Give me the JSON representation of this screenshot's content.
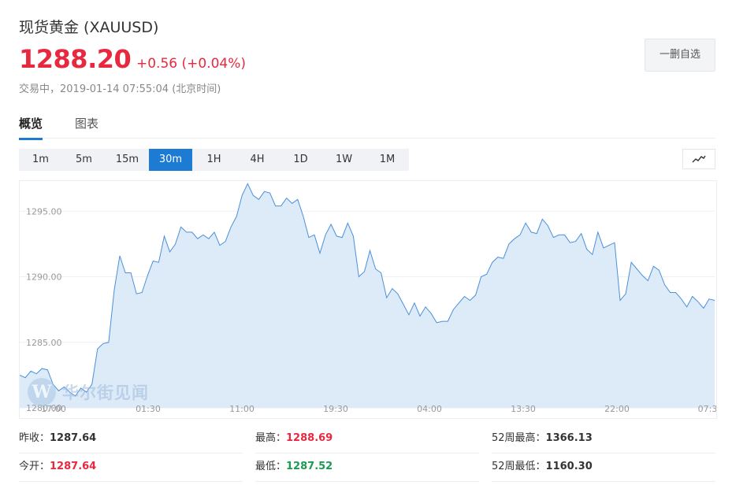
{
  "header": {
    "title": "现货黄金  (XAUUSD)",
    "price": "1288.20",
    "change": "+0.56 (+0.04%)",
    "status": "交易中，2019-01-14 07:55:04 (北京时间)",
    "watch_button": "一删自选"
  },
  "tabs": [
    {
      "label": "概览",
      "active": true
    },
    {
      "label": "图表",
      "active": false
    }
  ],
  "periods": [
    "1m",
    "5m",
    "15m",
    "30m",
    "1H",
    "4H",
    "1D",
    "1W",
    "1M"
  ],
  "active_period": "30m",
  "chart_type_icon": "line-chart-icon",
  "watermark": {
    "logo_letter": "W",
    "text": "华尔街见闻"
  },
  "chart_data": {
    "type": "area",
    "x_ticks": [
      "17:00",
      "01:30",
      "11:00",
      "19:30",
      "04:00",
      "13:30",
      "22:00",
      "07:3"
    ],
    "y_ticks": [
      "1280.00",
      "1285.00",
      "1290.00",
      "1295.00"
    ],
    "ylim": [
      1280,
      1297.3
    ],
    "grid": true,
    "line_color": "#4a90d9",
    "fill_color": "#ddebf9",
    "values": [
      1282.5,
      1282.3,
      1282.8,
      1282.6,
      1283.0,
      1282.9,
      1281.8,
      1281.3,
      1281.6,
      1281.2,
      1280.9,
      1281.5,
      1281.2,
      1281.8,
      1284.5,
      1284.9,
      1285.0,
      1289.0,
      1291.6,
      1290.3,
      1290.3,
      1288.7,
      1288.8,
      1290.1,
      1291.2,
      1291.1,
      1293.1,
      1291.9,
      1292.5,
      1293.8,
      1293.4,
      1293.4,
      1292.9,
      1293.2,
      1292.9,
      1293.4,
      1292.4,
      1292.7,
      1293.8,
      1294.6,
      1296.2,
      1297.1,
      1296.2,
      1295.9,
      1296.5,
      1296.4,
      1295.4,
      1295.4,
      1296.0,
      1295.6,
      1295.9,
      1294.6,
      1293.0,
      1293.2,
      1291.8,
      1293.2,
      1294.0,
      1293.1,
      1293.0,
      1294.1,
      1293.1,
      1290.0,
      1290.4,
      1292.0,
      1290.6,
      1290.3,
      1288.4,
      1289.1,
      1288.7,
      1287.9,
      1287.1,
      1288.0,
      1287.0,
      1287.7,
      1287.2,
      1286.5,
      1286.6,
      1286.6,
      1287.5,
      1288.0,
      1288.5,
      1288.2,
      1288.6,
      1290.0,
      1290.2,
      1291.1,
      1291.5,
      1291.4,
      1292.5,
      1292.9,
      1293.2,
      1294.1,
      1293.4,
      1293.3,
      1294.4,
      1293.9,
      1293.0,
      1293.2,
      1293.2,
      1292.6,
      1292.7,
      1293.3,
      1292.1,
      1291.7,
      1293.4,
      1292.2,
      1292.4,
      1292.6,
      1288.2,
      1288.7,
      1291.1,
      1290.6,
      1290.1,
      1289.7,
      1290.8,
      1290.5,
      1289.4,
      1288.8,
      1288.8,
      1288.3,
      1287.7,
      1288.5,
      1288.1,
      1287.6,
      1288.3,
      1288.2
    ],
    "y_at_first_label": 1280
  },
  "stats": [
    {
      "label": "昨收：",
      "value": "1287.64",
      "color": "black"
    },
    {
      "label": "最高：",
      "value": "1288.69",
      "color": "red"
    },
    {
      "label": "52周最高：",
      "value": "1366.13",
      "color": "black"
    },
    {
      "label": "今开：",
      "value": "1287.64",
      "color": "red"
    },
    {
      "label": "最低：",
      "value": "1287.52",
      "color": "green"
    },
    {
      "label": "52周最低：",
      "value": "1160.30",
      "color": "black"
    }
  ]
}
